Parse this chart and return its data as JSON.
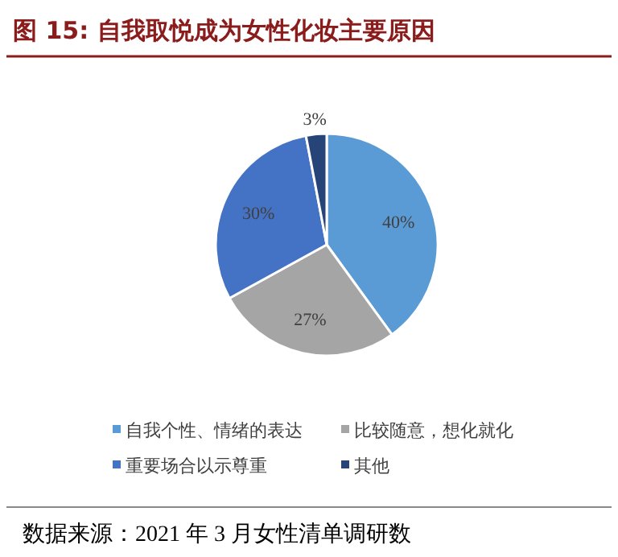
{
  "chart_data": {
    "type": "pie",
    "title": "图 15:  自我取悦成为女性化妆主要原因",
    "categories": [
      "自我个性、情绪的表达",
      "比较随意，想化就化",
      "重要场合以示尊重",
      "其他"
    ],
    "values": [
      40,
      27,
      30,
      3
    ],
    "colors": [
      "#5b9bd5",
      "#a5a5a5",
      "#4472c4",
      "#264478"
    ],
    "value_labels": [
      "40%",
      "27%",
      "30%",
      "3%"
    ],
    "legend": "bottom",
    "annotations": [
      "数据来源：2021 年 3 月女性清单调研数"
    ]
  }
}
